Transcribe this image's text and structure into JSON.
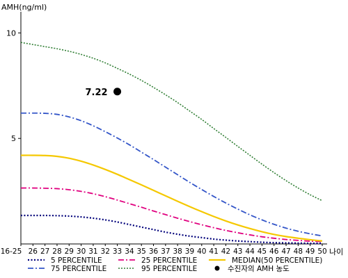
{
  "chart_data": {
    "type": "line",
    "ylabel": "AMH(ng/ml)",
    "xlabel": "나이",
    "ylim": [
      0,
      11
    ],
    "y_ticks": [
      {
        "value": 5,
        "label": "5"
      },
      {
        "value": 10,
        "label": "10"
      }
    ],
    "categories": [
      "16-25",
      "26",
      "27",
      "28",
      "29",
      "30",
      "31",
      "32",
      "33",
      "34",
      "35",
      "36",
      "37",
      "38",
      "39",
      "40",
      "41",
      "42",
      "43",
      "44",
      "45",
      "46",
      "47",
      "48",
      "49",
      "50"
    ],
    "series": [
      {
        "key": "p5",
        "name": "5 PERCENTILE",
        "color": "#00007a",
        "dash": "2,2.5",
        "width": 2.2,
        "values": [
          1.35,
          1.35,
          1.35,
          1.34,
          1.32,
          1.28,
          1.22,
          1.14,
          1.04,
          0.92,
          0.8,
          0.68,
          0.56,
          0.46,
          0.37,
          0.3,
          0.23,
          0.18,
          0.14,
          0.11,
          0.08,
          0.06,
          0.05,
          0.04,
          0.03,
          0.03
        ]
      },
      {
        "key": "p25",
        "name": "25 PERCENTILE",
        "color": "#e0007f",
        "dash": "8,3,2,3",
        "width": 1.8,
        "values": [
          2.65,
          2.65,
          2.64,
          2.62,
          2.57,
          2.49,
          2.38,
          2.24,
          2.08,
          1.91,
          1.74,
          1.56,
          1.39,
          1.22,
          1.06,
          0.91,
          0.77,
          0.64,
          0.53,
          0.43,
          0.34,
          0.27,
          0.21,
          0.17,
          0.13,
          0.11
        ]
      },
      {
        "key": "p75",
        "name": "75 PERCENTILE",
        "color": "#3355c8",
        "dash": "8,3,2,3",
        "width": 1.8,
        "values": [
          6.2,
          6.2,
          6.19,
          6.14,
          6.02,
          5.84,
          5.6,
          5.32,
          5.02,
          4.7,
          4.35,
          4.0,
          3.64,
          3.28,
          2.92,
          2.58,
          2.25,
          1.94,
          1.65,
          1.38,
          1.14,
          0.93,
          0.75,
          0.6,
          0.48,
          0.38
        ]
      },
      {
        "key": "p50",
        "name": "MEDIAN(50 PERCENTILE)",
        "color": "#f5c800",
        "dash": "",
        "width": 2.2,
        "values": [
          4.2,
          4.2,
          4.19,
          4.15,
          4.06,
          3.92,
          3.74,
          3.53,
          3.3,
          3.05,
          2.8,
          2.54,
          2.28,
          2.02,
          1.77,
          1.53,
          1.3,
          1.09,
          0.9,
          0.73,
          0.58,
          0.45,
          0.35,
          0.27,
          0.2,
          0.14
        ]
      },
      {
        "key": "p95",
        "name": "95 PERCENTILE",
        "color": "#2e7d32",
        "dash": "2,2",
        "width": 1.6,
        "values": [
          9.55,
          9.45,
          9.35,
          9.25,
          9.13,
          8.98,
          8.8,
          8.58,
          8.32,
          8.05,
          7.75,
          7.42,
          7.07,
          6.7,
          6.3,
          5.9,
          5.47,
          5.05,
          4.62,
          4.2,
          3.78,
          3.38,
          3.0,
          2.65,
          2.33,
          2.05
        ]
      }
    ],
    "highlight": {
      "x": "33",
      "y": 7.22,
      "label": "7.22",
      "legend_label": "수진자의 AMH 농도",
      "color": "#000000"
    },
    "legend_layout": [
      [
        "p5",
        "p25",
        "p50"
      ],
      [
        "p75",
        "p95",
        "highlight"
      ]
    ],
    "grid": false
  }
}
